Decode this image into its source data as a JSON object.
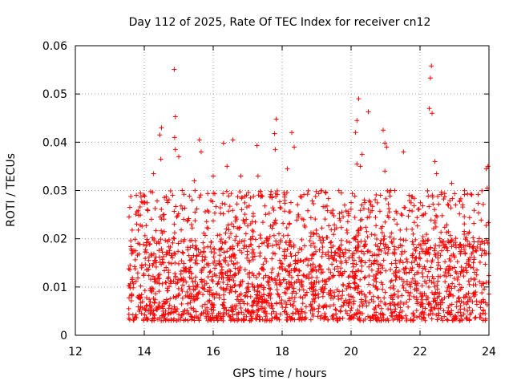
{
  "chart_data": {
    "type": "scatter",
    "title": "Day 112 of 2025, Rate Of TEC Index for receiver cn12",
    "xlabel": "GPS time / hours",
    "ylabel": "ROTI / TECUs",
    "xlim": [
      12,
      24
    ],
    "ylim": [
      0,
      0.06
    ],
    "xticks": [
      12,
      14,
      16,
      18,
      20,
      22,
      24
    ],
    "yticks": [
      0,
      0.01,
      0.02,
      0.03,
      0.04,
      0.05,
      0.06
    ],
    "xtick_labels": [
      "12",
      "14",
      "16",
      "18",
      "20",
      "22",
      "24"
    ],
    "ytick_labels": [
      "0",
      "0.01",
      "0.02",
      "0.03",
      "0.04",
      "0.05",
      "0.06"
    ],
    "grid": true,
    "marker": "+",
    "color": "#ff0000",
    "data_start_hour": 13.55,
    "data_end_hour": 24.0,
    "typical_range": [
      0.003,
      0.02
    ],
    "series": [
      {
        "name": "ROTI",
        "points": [
          [
            13.58,
            0.0265
          ],
          [
            14.87,
            0.0551
          ],
          [
            22.33,
            0.0558
          ],
          [
            22.3,
            0.0533
          ],
          [
            20.22,
            0.049
          ],
          [
            20.5,
            0.0463
          ],
          [
            20.17,
            0.0445
          ],
          [
            22.27,
            0.047
          ],
          [
            22.35,
            0.046
          ],
          [
            14.9,
            0.0453
          ],
          [
            14.5,
            0.043
          ],
          [
            17.83,
            0.0448
          ],
          [
            20.13,
            0.042
          ],
          [
            20.93,
            0.0425
          ],
          [
            18.28,
            0.042
          ],
          [
            17.78,
            0.0418
          ],
          [
            14.45,
            0.0415
          ],
          [
            14.88,
            0.041
          ],
          [
            15.6,
            0.0405
          ],
          [
            16.57,
            0.0405
          ],
          [
            16.3,
            0.0398
          ],
          [
            17.27,
            0.0393
          ],
          [
            20.98,
            0.0398
          ],
          [
            21.03,
            0.039
          ],
          [
            21.52,
            0.038
          ],
          [
            15.65,
            0.038
          ],
          [
            18.35,
            0.039
          ],
          [
            17.8,
            0.0385
          ],
          [
            14.9,
            0.0385
          ],
          [
            14.48,
            0.0365
          ],
          [
            15.0,
            0.037
          ],
          [
            20.32,
            0.0375
          ],
          [
            20.17,
            0.0355
          ],
          [
            22.43,
            0.036
          ],
          [
            23.97,
            0.035
          ],
          [
            23.92,
            0.0345
          ],
          [
            18.15,
            0.0345
          ],
          [
            17.3,
            0.033
          ],
          [
            20.27,
            0.035
          ],
          [
            20.98,
            0.034
          ],
          [
            22.48,
            0.0335
          ],
          [
            16.4,
            0.035
          ],
          [
            14.27,
            0.0335
          ],
          [
            15.45,
            0.032
          ],
          [
            16.0,
            0.033
          ],
          [
            16.8,
            0.033
          ],
          [
            19.27,
            0.0295
          ],
          [
            21.15,
            0.03
          ],
          [
            21.68,
            0.029
          ],
          [
            22.92,
            0.0315
          ],
          [
            23.95,
            0.0305
          ],
          [
            15.1,
            0.03
          ]
        ]
      }
    ]
  }
}
